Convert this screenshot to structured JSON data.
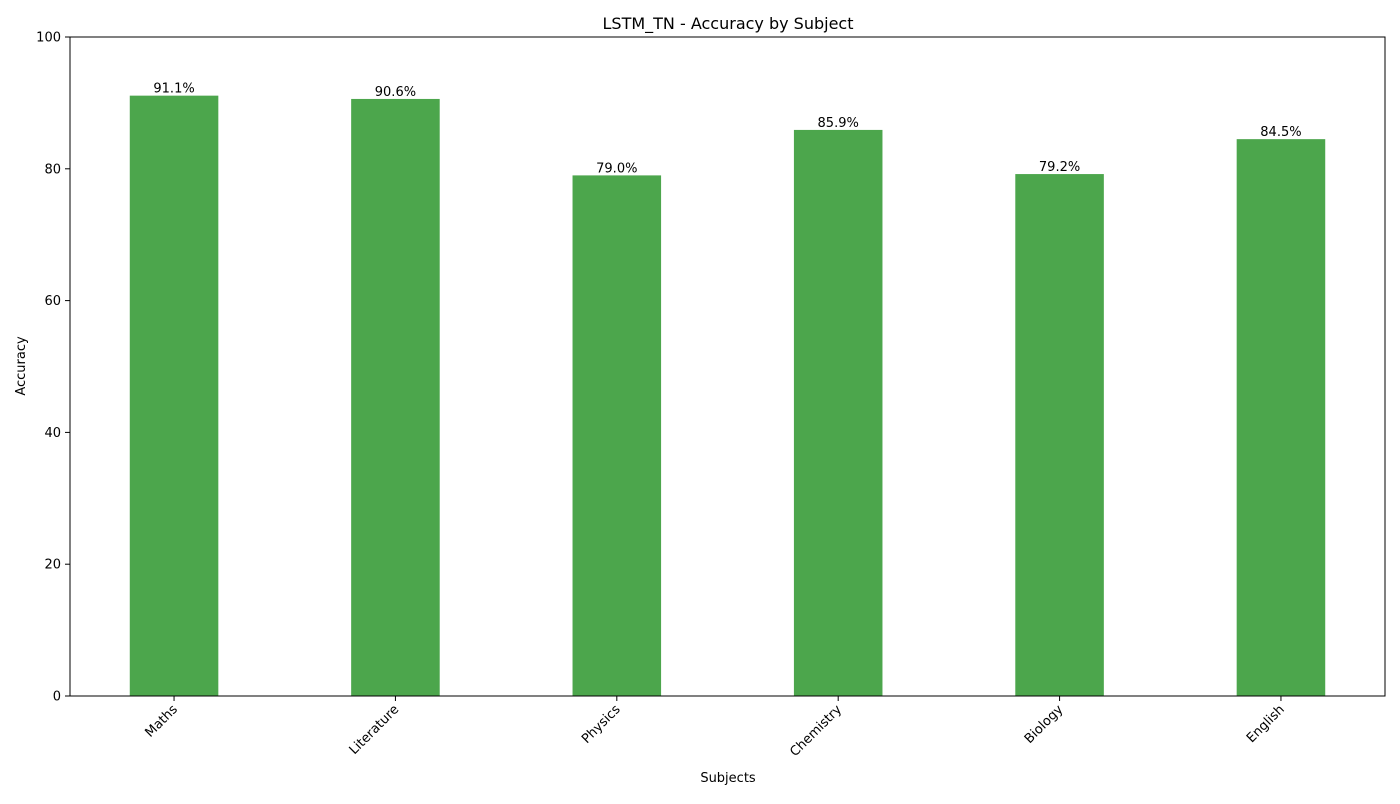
{
  "chart_data": {
    "type": "bar",
    "title": "LSTM_TN - Accuracy by Subject",
    "xlabel": "Subjects",
    "ylabel": "Accuracy",
    "categories": [
      "Maths",
      "Literature",
      "Physics",
      "Chemistry",
      "Biology",
      "English"
    ],
    "values": [
      91.1,
      90.6,
      79.0,
      85.9,
      79.2,
      84.5
    ],
    "data_labels": [
      "91.1%",
      "90.6%",
      "79.0%",
      "85.9%",
      "79.2%",
      "84.5%"
    ],
    "ylim": [
      0,
      100
    ],
    "yticks": [
      0,
      20,
      40,
      60,
      80,
      100
    ],
    "grid": false,
    "bar_color": "#4ca64c"
  }
}
